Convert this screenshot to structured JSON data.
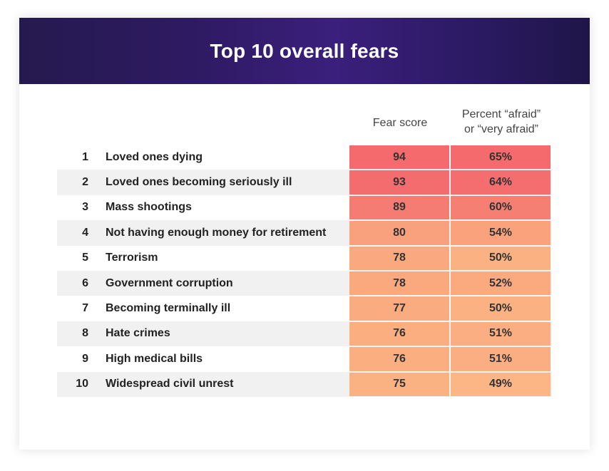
{
  "chart_data": {
    "type": "table",
    "title": "Top 10 overall fears",
    "columns": [
      "",
      "",
      "Fear score",
      "Percent “afraid” or “very afraid”"
    ],
    "column_headers": {
      "score": "Fear score",
      "percent_line1": "Percent “afraid”",
      "percent_line2": "or “very afraid”"
    },
    "rows": [
      {
        "rank": "1",
        "fear": "Loved ones dying",
        "score": "94",
        "percent": "65%",
        "score_color": "#f46a6d",
        "percent_color": "#f46a6d"
      },
      {
        "rank": "2",
        "fear": "Loved ones becoming seriously ill",
        "score": "93",
        "percent": "64%",
        "score_color": "#f46d6e",
        "percent_color": "#f46e70"
      },
      {
        "rank": "3",
        "fear": "Mass shootings",
        "score": "89",
        "percent": "60%",
        "score_color": "#f57c72",
        "percent_color": "#f67f74"
      },
      {
        "rank": "4",
        "fear": "Not having enough money for retirement",
        "score": "80",
        "percent": "54%",
        "score_color": "#f9a07c",
        "percent_color": "#f9a27c"
      },
      {
        "rank": "5",
        "fear": "Terrorism",
        "score": "78",
        "percent": "50%",
        "score_color": "#faa87e",
        "percent_color": "#fbb182"
      },
      {
        "rank": "6",
        "fear": "Government corruption",
        "score": "78",
        "percent": "52%",
        "score_color": "#faa87e",
        "percent_color": "#fbaa80"
      },
      {
        "rank": "7",
        "fear": "Becoming terminally ill",
        "score": "77",
        "percent": "50%",
        "score_color": "#fbab80",
        "percent_color": "#fbb182"
      },
      {
        "rank": "8",
        "fear": "Hate crimes",
        "score": "76",
        "percent": "51%",
        "score_color": "#fbae80",
        "percent_color": "#fbae81"
      },
      {
        "rank": "9",
        "fear": "High medical bills",
        "score": "76",
        "percent": "51%",
        "score_color": "#fbae80",
        "percent_color": "#fbae81"
      },
      {
        "rank": "10",
        "fear": "Widespread civil unrest",
        "score": "75",
        "percent": "49%",
        "score_color": "#fbb282",
        "percent_color": "#fcb584"
      }
    ]
  },
  "colors": {
    "header_bg_dark": "#251a4f",
    "header_bg_light": "#3b1f7c",
    "row_shade": "#f1f1f1"
  }
}
